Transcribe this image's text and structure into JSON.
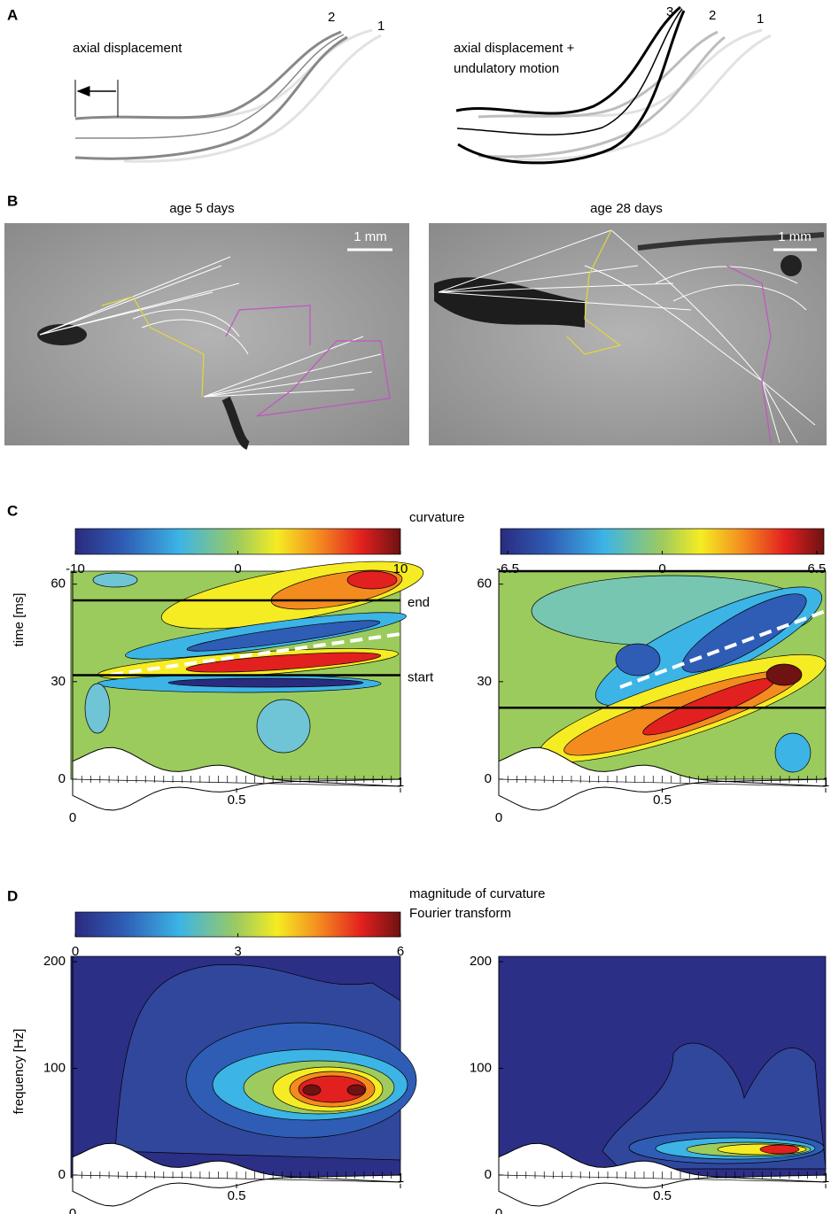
{
  "panels": {
    "A": {
      "label": "A",
      "left": {
        "caption": "axial displacement",
        "markers": [
          "1",
          "2"
        ]
      },
      "right": {
        "caption_lines": [
          "axial displacement +",
          "undulatory motion"
        ],
        "markers": [
          "1",
          "2",
          "3"
        ]
      }
    },
    "B": {
      "label": "B",
      "left": {
        "title": "age 5 days",
        "scale_bar": "1 mm"
      },
      "right": {
        "title": "age 28 days",
        "scale_bar": "1 mm"
      }
    },
    "C": {
      "label": "C",
      "colorbar_label": "curvature",
      "ylabel": "time [ms]",
      "left": {
        "clim": [
          -10,
          10
        ],
        "colorbar_ticks": [
          -10,
          0,
          10
        ],
        "ylim": [
          0,
          64
        ],
        "yticks": [
          0,
          30,
          60
        ],
        "xlim": [
          0,
          1
        ],
        "xticks": [
          0,
          0.5,
          1
        ],
        "lines": [
          {
            "label": "end",
            "value": 55
          },
          {
            "label": "start",
            "value": 32
          }
        ]
      },
      "right": {
        "clim": [
          -6.8,
          6.8
        ],
        "colorbar_ticks": [
          -6.5,
          0,
          6.5
        ],
        "ylim": [
          0,
          64
        ],
        "yticks": [
          0,
          30,
          60
        ],
        "xlim": [
          0,
          1
        ],
        "xticks": [
          0,
          0.5,
          1
        ],
        "lines": [
          {
            "value": 64
          },
          {
            "value": 22
          }
        ]
      }
    },
    "D": {
      "label": "D",
      "colorbar_label_lines": [
        "magnitude of curvature",
        "Fourier transform"
      ],
      "ylabel": "frequency [Hz]",
      "left": {
        "clim": [
          0,
          6
        ],
        "colorbar_ticks": [
          0,
          3,
          6
        ],
        "ylim": [
          0,
          205
        ],
        "yticks": [
          0,
          100,
          200
        ],
        "xlim": [
          0,
          1
        ],
        "xticks": [
          0,
          0.5,
          1
        ]
      },
      "right": {
        "ylim": [
          0,
          205
        ],
        "yticks": [
          0,
          100,
          200
        ],
        "xlim": [
          0,
          1
        ],
        "xticks": [
          0,
          0.5,
          1
        ]
      }
    }
  }
}
